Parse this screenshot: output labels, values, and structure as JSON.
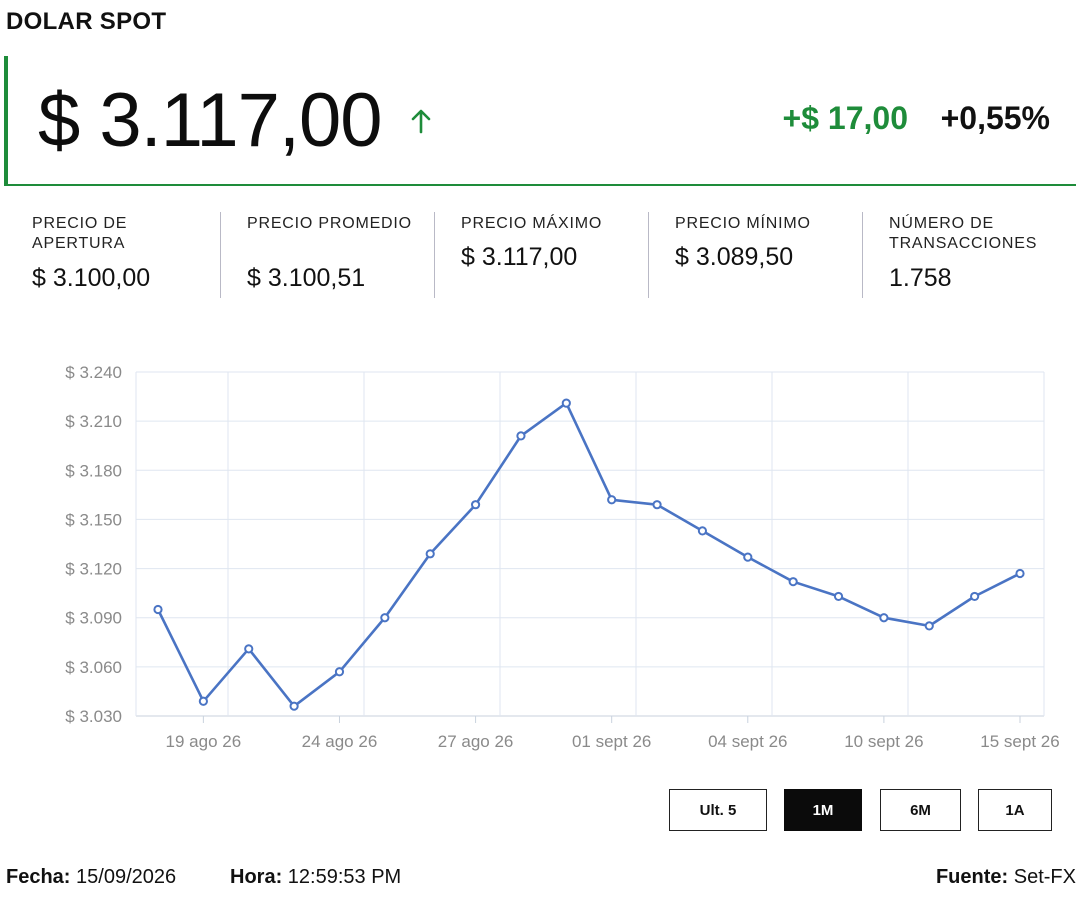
{
  "title": "DOLAR SPOT",
  "price": "$ 3.117,00",
  "trend_icon": "arrow-up-icon",
  "change_abs": "+$ 17,00",
  "change_pct": "+0,55%",
  "colors": {
    "accent_green": "#1e8c3a",
    "line": "#4a74c4",
    "grid": "#dfe6f0"
  },
  "stats": [
    {
      "label": "PRECIO DE APERTURA",
      "value": "$ 3.100,00"
    },
    {
      "label": "PRECIO PROMEDIO",
      "value": "$ 3.100,51"
    },
    {
      "label": "PRECIO MÁXIMO",
      "value": "$ 3.117,00"
    },
    {
      "label": "PRECIO MÍNIMO",
      "value": "$ 3.089,50"
    },
    {
      "label": "NÚMERO DE TRANSACCIONES",
      "value": "1.758"
    }
  ],
  "chart_data": {
    "type": "line",
    "y_ticks": [
      "$ 3.030",
      "$ 3.060",
      "$ 3.090",
      "$ 3.120",
      "$ 3.150",
      "$ 3.180",
      "$ 3.210",
      "$ 3.240"
    ],
    "ylim": [
      3030,
      3240
    ],
    "x_ticks": [
      "19 ago 26",
      "24 ago 26",
      "27 ago 26",
      "01 sept 26",
      "04 sept 26",
      "10 sept 26",
      "15 sept 26"
    ],
    "grid": true,
    "series": [
      {
        "values": [
          3095,
          3039,
          3071,
          3036,
          3057,
          3090,
          3129,
          3159,
          3201,
          3221,
          3162,
          3159,
          3143,
          3127,
          3112,
          3103,
          3090,
          3085,
          3103,
          3117
        ]
      }
    ]
  },
  "range_buttons": [
    {
      "label": "Ult. 5",
      "active": false
    },
    {
      "label": "1M",
      "active": true
    },
    {
      "label": "6M",
      "active": false
    },
    {
      "label": "1A",
      "active": false
    }
  ],
  "footer": {
    "fecha_label": "Fecha:",
    "fecha": "15/09/2026",
    "hora_label": "Hora:",
    "hora": "12:59:53 PM",
    "fuente_label": "Fuente:",
    "fuente": "Set-FX"
  }
}
